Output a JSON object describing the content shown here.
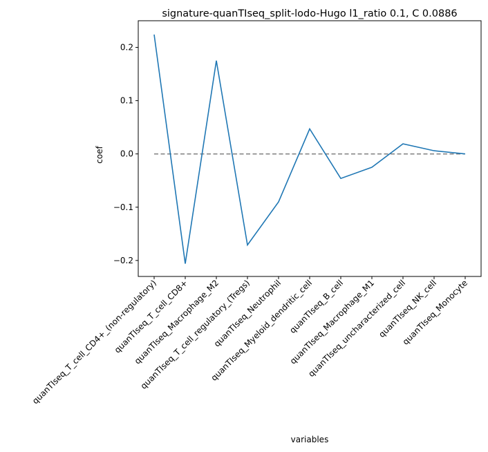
{
  "chart_data": {
    "type": "line",
    "title": "signature-quanTIseq_split-lodo-Hugo l1_ratio 0.1, C 0.0886",
    "xlabel": "variables",
    "ylabel": "coef",
    "categories": [
      "quanTIseq_T_cell_CD4+_(non-regulatory)",
      "quanTIseq_T_cell_CD8+",
      "quanTIseq_Macrophage_M2",
      "quanTIseq_T_cell_regulatory_(Tregs)",
      "quanTIseq_Neutrophil",
      "quanTIseq_Myeloid_dendritic_cell",
      "quanTIseq_B_cell",
      "quanTIseq_Macrophage_M1",
      "quanTIseq_uncharacterized_cell",
      "quanTIseq_NK_cell",
      "quanTIseq_Monocyte"
    ],
    "series": [
      {
        "color": "#1f77b4",
        "values": [
          0.224,
          -0.206,
          0.175,
          -0.171,
          -0.09,
          0.047,
          -0.046,
          -0.025,
          0.019,
          0.006,
          0.0
        ]
      }
    ],
    "reference_line": {
      "y": 0,
      "style": "dashed",
      "color": "#808080"
    },
    "ylim": [
      -0.23,
      0.25
    ],
    "yticks": [
      -0.2,
      -0.1,
      0.0,
      0.1,
      0.2
    ],
    "ytick_labels": [
      "−0.2",
      "−0.1",
      "0.0",
      "0.1",
      "0.2"
    ],
    "grid": false,
    "legend": "none"
  }
}
